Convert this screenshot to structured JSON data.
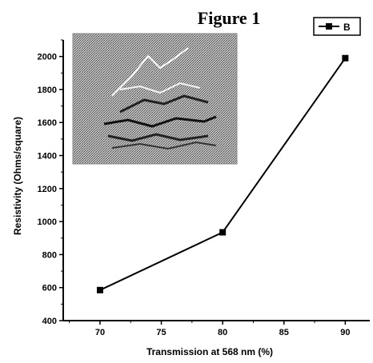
{
  "figure_title": "Figure 1",
  "inset_image": {
    "description_icon": "micrograph-image"
  },
  "chart_data": {
    "type": "line",
    "title": "Figure 1",
    "xlabel": "Transmission at 568 nm (%)",
    "ylabel": "Resistivity (Ohms/square)",
    "xlim": [
      67,
      92
    ],
    "ylim": [
      400,
      2100
    ],
    "xticks": [
      70,
      75,
      80,
      85,
      90
    ],
    "yticks": [
      400,
      600,
      800,
      1000,
      1200,
      1400,
      1600,
      1800,
      2000
    ],
    "grid": false,
    "legend_position": "top-right",
    "series": [
      {
        "name": "B",
        "marker": "square",
        "color": "#000000",
        "x": [
          70,
          80,
          90
        ],
        "y": [
          585,
          935,
          1990
        ]
      }
    ]
  }
}
